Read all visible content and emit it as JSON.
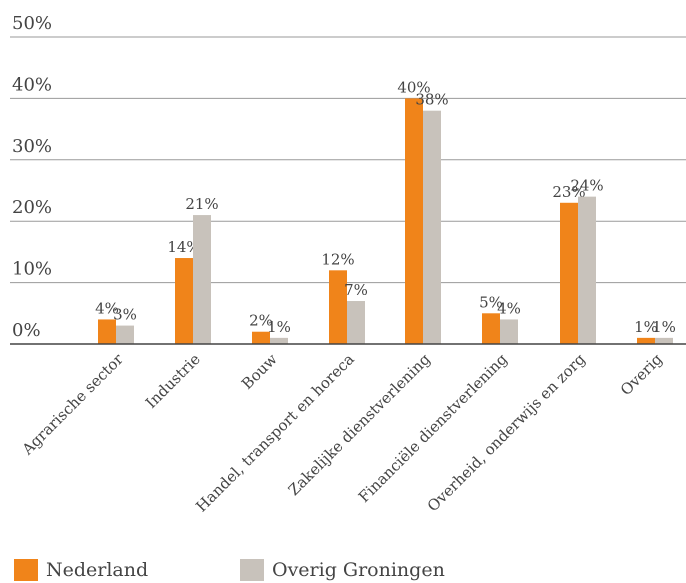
{
  "chart_data": {
    "type": "bar",
    "categories": [
      "Agrarische sector",
      "Industrie",
      "Bouw",
      "Handel, transport en horeca",
      "Zakelijke dienstverlening",
      "Financiële dienstverlening",
      "Overheid, onderwijs en zorg",
      "Overig"
    ],
    "series": [
      {
        "name": "Nederland",
        "color": "#f0841a",
        "values": [
          4,
          14,
          2,
          12,
          40,
          5,
          23,
          1
        ]
      },
      {
        "name": "Overig Groningen",
        "color": "#c8c2bb",
        "values": [
          3,
          21,
          1,
          7,
          38,
          4,
          24,
          1
        ]
      }
    ],
    "data_labels": [
      [
        "4%",
        "14%",
        "2%",
        "12%",
        "40%",
        "5%",
        "23%",
        "1%"
      ],
      [
        "3%",
        "21%",
        "1%",
        "7%",
        "38%",
        "4%",
        "24%",
        "1%"
      ]
    ],
    "y_ticks": [
      "0%",
      "10%",
      "20%",
      "30%",
      "40%",
      "50%"
    ],
    "ylim": [
      0,
      50
    ],
    "grid": true,
    "legend_position": "bottom-left"
  }
}
